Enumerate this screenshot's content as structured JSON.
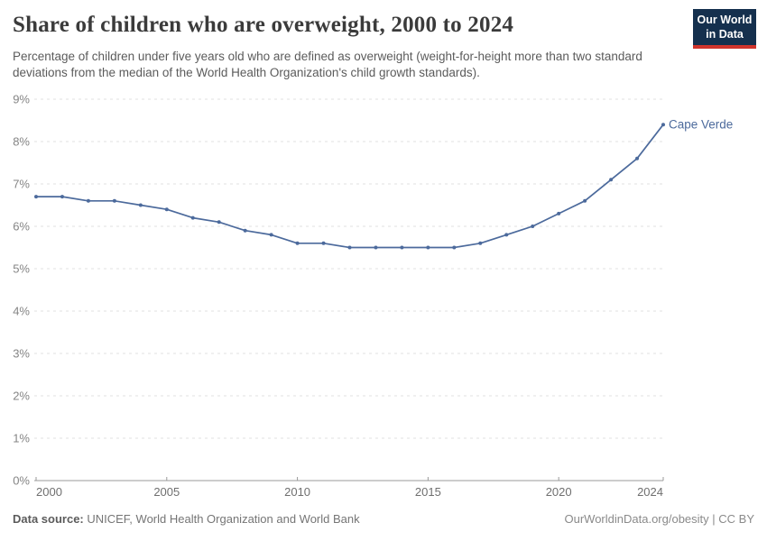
{
  "header": {
    "title": "Share of children who are overweight, 2000 to 2024",
    "subtitle": "Percentage of children under five years old who are defined as overweight (weight-for-height more than two standard deviations from the median of the World Health Organization's child growth standards).",
    "logo": {
      "line1": "Our World",
      "line2": "in Data"
    }
  },
  "chart_data": {
    "type": "line",
    "title": "Share of children who are overweight, 2000 to 2024",
    "xlabel": "",
    "ylabel": "",
    "xlim": [
      2000,
      2024
    ],
    "ylim": [
      0,
      9
    ],
    "grid": "horizontal-dashed",
    "x_ticks": [
      2000,
      2005,
      2010,
      2015,
      2020,
      2024
    ],
    "y_ticks": [
      0,
      1,
      2,
      3,
      4,
      5,
      6,
      7,
      8,
      9
    ],
    "y_tick_suffix": "%",
    "x": [
      2000,
      2001,
      2002,
      2003,
      2004,
      2005,
      2006,
      2007,
      2008,
      2009,
      2010,
      2011,
      2012,
      2013,
      2014,
      2015,
      2016,
      2017,
      2018,
      2019,
      2020,
      2021,
      2022,
      2023,
      2024
    ],
    "series": [
      {
        "name": "Cape Verde",
        "color": "#4c6a9c",
        "values": [
          6.7,
          6.7,
          6.6,
          6.6,
          6.5,
          6.4,
          6.2,
          6.1,
          5.9,
          5.8,
          5.6,
          5.6,
          5.5,
          5.5,
          5.5,
          5.5,
          5.5,
          5.6,
          5.8,
          6.0,
          6.3,
          6.6,
          7.1,
          7.6,
          8.4
        ]
      }
    ],
    "end_label": "Cape Verde",
    "legend_position": "end-of-line"
  },
  "colors": {
    "line": "#4c6a9c",
    "grid": "#e0e0e0",
    "axis": "#9a9a9a",
    "y_tick_label": "#858585",
    "x_tick_label": "#6f6f6f",
    "title": "#3b3b3b",
    "subtitle": "#5b5b5b",
    "logo_bg": "#15304e",
    "logo_accent": "#d0342c"
  },
  "footer": {
    "source_label": "Data source:",
    "source_text": " UNICEF, World Health Organization and World Bank",
    "right_text": "OurWorldinData.org/obesity | CC BY"
  }
}
